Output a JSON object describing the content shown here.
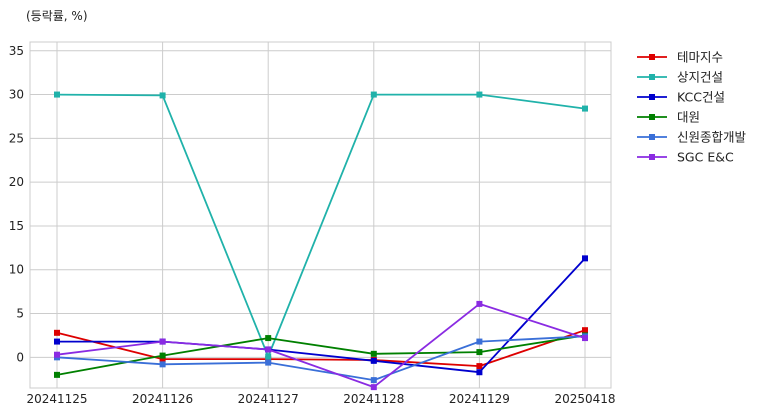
{
  "chart_data": {
    "type": "line",
    "unit_label": "(등락률, %)",
    "categories": [
      "20241125",
      "20241126",
      "20241127",
      "20241128",
      "20241129",
      "20250418"
    ],
    "ylim": [
      -3.5,
      36
    ],
    "yticks": [
      0,
      5,
      10,
      15,
      20,
      25,
      30,
      35
    ],
    "grid": true,
    "legend_position": "right",
    "series": [
      {
        "name": "테마지수",
        "color": "#dd0000",
        "values": [
          2.8,
          -0.2,
          -0.2,
          -0.3,
          -1.0,
          3.1
        ]
      },
      {
        "name": "상지건설",
        "color": "#20b2aa",
        "values": [
          30.0,
          29.9,
          0.1,
          30.0,
          30.0,
          28.4
        ]
      },
      {
        "name": "KCC건설",
        "color": "#0000cd",
        "values": [
          1.8,
          1.8,
          0.9,
          -0.4,
          -1.7,
          11.3
        ]
      },
      {
        "name": "대원",
        "color": "#008000",
        "values": [
          -2.0,
          0.2,
          2.2,
          0.4,
          0.6,
          2.5
        ]
      },
      {
        "name": "신원종합개발",
        "color": "#3a6fd8",
        "values": [
          0.0,
          -0.8,
          -0.6,
          -2.6,
          1.8,
          2.4
        ]
      },
      {
        "name": "SGC E&C",
        "color": "#8a2be2",
        "values": [
          0.3,
          1.8,
          0.9,
          -3.4,
          6.1,
          2.2
        ]
      }
    ]
  }
}
